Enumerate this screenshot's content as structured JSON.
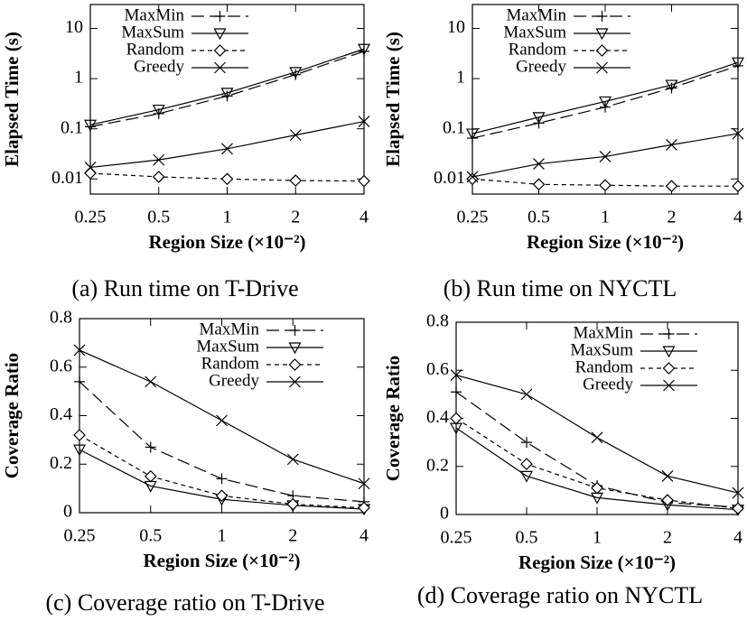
{
  "chart_data": [
    {
      "type": "line",
      "caption": "(a) Run time on T-Drive",
      "xlabel": "Region Size (×10⁻²)",
      "ylabel": "Elapsed Time (s)",
      "categories": [
        "0.25",
        "0.5",
        "1",
        "2",
        "4"
      ],
      "log_y": true,
      "ylim": [
        0.005,
        30
      ],
      "yticks": [
        0.01,
        0.1,
        1,
        10
      ],
      "legend": "upper left",
      "grid": false,
      "series": [
        {
          "name": "MaxMin",
          "color": "#000000",
          "marker": "plus",
          "dash": "long-dash",
          "values": [
            0.11,
            0.2,
            0.45,
            1.2,
            3.5
          ]
        },
        {
          "name": "MaxSum",
          "color": "#000000",
          "marker": "triangle-down",
          "dash": "solid",
          "values": [
            0.12,
            0.24,
            0.52,
            1.35,
            3.9
          ]
        },
        {
          "name": "Random",
          "color": "#000000",
          "marker": "diamond",
          "dash": "dash",
          "values": [
            0.013,
            0.011,
            0.01,
            0.0093,
            0.0091
          ]
        },
        {
          "name": "Greedy",
          "color": "#000000",
          "marker": "cross",
          "dash": "solid",
          "values": [
            0.017,
            0.024,
            0.04,
            0.075,
            0.14
          ]
        }
      ]
    },
    {
      "type": "line",
      "caption": "(b) Run time on NYCTL",
      "xlabel": "Region Size (×10⁻²)",
      "ylabel": "Elapsed Time (s)",
      "categories": [
        "0.25",
        "0.5",
        "1",
        "2",
        "4"
      ],
      "log_y": true,
      "ylim": [
        0.005,
        30
      ],
      "yticks": [
        0.01,
        0.1,
        1,
        10
      ],
      "legend": "upper left",
      "grid": false,
      "series": [
        {
          "name": "MaxMin",
          "color": "#000000",
          "marker": "plus",
          "dash": "long-dash",
          "values": [
            0.065,
            0.13,
            0.27,
            0.65,
            1.8
          ]
        },
        {
          "name": "MaxSum",
          "color": "#000000",
          "marker": "triangle-down",
          "dash": "solid",
          "values": [
            0.08,
            0.17,
            0.35,
            0.75,
            2.1
          ]
        },
        {
          "name": "Random",
          "color": "#000000",
          "marker": "diamond",
          "dash": "dash",
          "values": [
            0.01,
            0.0078,
            0.0075,
            0.0072,
            0.0072
          ]
        },
        {
          "name": "Greedy",
          "color": "#000000",
          "marker": "cross",
          "dash": "solid",
          "values": [
            0.011,
            0.02,
            0.028,
            0.048,
            0.08
          ]
        }
      ]
    },
    {
      "type": "line",
      "caption": "(c) Coverage ratio on T-Drive",
      "xlabel": "Region Size (×10⁻²)",
      "ylabel": "Coverage Ratio",
      "categories": [
        "0.25",
        "0.5",
        "1",
        "2",
        "4"
      ],
      "log_y": false,
      "ylim": [
        0,
        0.8
      ],
      "yticks": [
        0,
        0.2,
        0.4,
        0.6,
        0.8
      ],
      "legend": "upper right",
      "grid": false,
      "series": [
        {
          "name": "MaxMin",
          "color": "#000000",
          "marker": "plus",
          "dash": "long-dash",
          "values": [
            0.54,
            0.27,
            0.14,
            0.07,
            0.045
          ]
        },
        {
          "name": "MaxSum",
          "color": "#000000",
          "marker": "triangle-down",
          "dash": "solid",
          "values": [
            0.26,
            0.11,
            0.055,
            0.03,
            0.015
          ]
        },
        {
          "name": "Random",
          "color": "#000000",
          "marker": "diamond",
          "dash": "dash",
          "values": [
            0.32,
            0.15,
            0.07,
            0.035,
            0.02
          ]
        },
        {
          "name": "Greedy",
          "color": "#000000",
          "marker": "cross",
          "dash": "solid",
          "values": [
            0.67,
            0.54,
            0.38,
            0.22,
            0.12
          ]
        }
      ]
    },
    {
      "type": "line",
      "caption": "(d) Coverage ratio on NYCTL",
      "xlabel": "Region Size (×10⁻²)",
      "ylabel": "Coverage Ratio",
      "categories": [
        "0.25",
        "0.5",
        "1",
        "2",
        "4"
      ],
      "log_y": false,
      "ylim": [
        0,
        0.8
      ],
      "yticks": [
        0,
        0.2,
        0.4,
        0.6,
        0.8
      ],
      "legend": "upper right",
      "grid": false,
      "series": [
        {
          "name": "MaxMin",
          "color": "#000000",
          "marker": "plus",
          "dash": "long-dash",
          "values": [
            0.51,
            0.3,
            0.12,
            0.05,
            0.03
          ]
        },
        {
          "name": "MaxSum",
          "color": "#000000",
          "marker": "triangle-down",
          "dash": "solid",
          "values": [
            0.36,
            0.16,
            0.07,
            0.04,
            0.02
          ]
        },
        {
          "name": "Random",
          "color": "#000000",
          "marker": "diamond",
          "dash": "dash",
          "values": [
            0.4,
            0.21,
            0.11,
            0.06,
            0.025
          ]
        },
        {
          "name": "Greedy",
          "color": "#000000",
          "marker": "cross",
          "dash": "solid",
          "values": [
            0.58,
            0.5,
            0.32,
            0.16,
            0.09
          ]
        }
      ]
    }
  ]
}
